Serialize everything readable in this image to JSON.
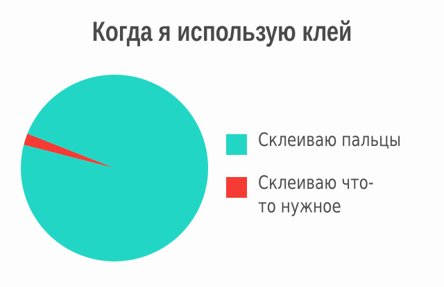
{
  "chart_data": {
    "type": "pie",
    "title": "Когда я использую клей",
    "slices": [
      {
        "label": "Склеиваю пальцы",
        "value": 98,
        "color": "#22d6c6"
      },
      {
        "label": "Склеиваю что-то нужное",
        "value": 2,
        "color": "#f63b34"
      }
    ],
    "legend_position": "right"
  }
}
